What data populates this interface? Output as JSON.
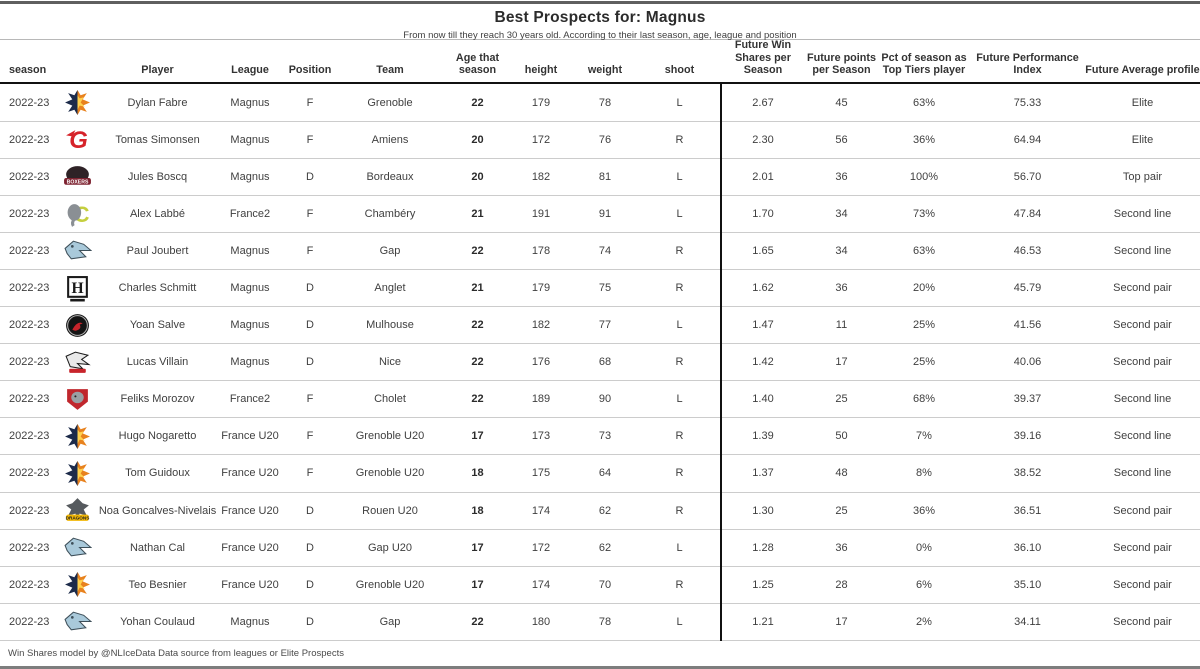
{
  "chart_data": {
    "type": "table",
    "title": "Best Prospects for: Magnus",
    "subtitle": "From now till they reach 30 years old. According to their last season, age, league and position",
    "footnote": "Win Shares model by @NLIceData Data source from leagues or Elite Prospects",
    "columns": [
      {
        "key": "season",
        "label": "season"
      },
      {
        "key": "logo",
        "label": ""
      },
      {
        "key": "player",
        "label": "Player"
      },
      {
        "key": "league",
        "label": "League"
      },
      {
        "key": "position",
        "label": "Position"
      },
      {
        "key": "team",
        "label": "Team"
      },
      {
        "key": "age",
        "label": "Age that\nseason"
      },
      {
        "key": "height",
        "label": "height"
      },
      {
        "key": "weight",
        "label": "weight"
      },
      {
        "key": "shoot",
        "label": "shoot"
      },
      {
        "key": "fws",
        "label": "Future Win\nShares per\nSeason"
      },
      {
        "key": "fpts",
        "label": "Future points\nper Season"
      },
      {
        "key": "pct",
        "label": "Pct of season as\nTop Tiers player"
      },
      {
        "key": "fpi",
        "label": "Future Performance Index"
      },
      {
        "key": "profile",
        "label": "Future Average profile"
      }
    ],
    "rows": [
      {
        "season": "2022-23",
        "logo": "grenoble",
        "player": "Dylan Fabre",
        "league": "Magnus",
        "position": "F",
        "team": "Grenoble",
        "age": "22",
        "height": "179",
        "weight": "78",
        "shoot": "L",
        "fws": "2.67",
        "fpts": "45",
        "pct": "63%",
        "fpi": "75.33",
        "profile": "Elite"
      },
      {
        "season": "2022-23",
        "logo": "amiens",
        "player": "Tomas Simonsen",
        "league": "Magnus",
        "position": "F",
        "team": "Amiens",
        "age": "20",
        "height": "172",
        "weight": "76",
        "shoot": "R",
        "fws": "2.30",
        "fpts": "56",
        "pct": "36%",
        "fpi": "64.94",
        "profile": "Elite"
      },
      {
        "season": "2022-23",
        "logo": "bordeaux",
        "player": "Jules Boscq",
        "league": "Magnus",
        "position": "D",
        "team": "Bordeaux",
        "age": "20",
        "height": "182",
        "weight": "81",
        "shoot": "L",
        "fws": "2.01",
        "fpts": "36",
        "pct": "100%",
        "fpi": "56.70",
        "profile": "Top pair"
      },
      {
        "season": "2022-23",
        "logo": "chambery",
        "player": "Alex Labbé",
        "league": "France2",
        "position": "F",
        "team": "Chambéry",
        "age": "21",
        "height": "191",
        "weight": "91",
        "shoot": "L",
        "fws": "1.70",
        "fpts": "34",
        "pct": "73%",
        "fpi": "47.84",
        "profile": "Second line"
      },
      {
        "season": "2022-23",
        "logo": "gap",
        "player": "Paul Joubert",
        "league": "Magnus",
        "position": "F",
        "team": "Gap",
        "age": "22",
        "height": "178",
        "weight": "74",
        "shoot": "R",
        "fws": "1.65",
        "fpts": "34",
        "pct": "63%",
        "fpi": "46.53",
        "profile": "Second line"
      },
      {
        "season": "2022-23",
        "logo": "anglet",
        "player": "Charles Schmitt",
        "league": "Magnus",
        "position": "D",
        "team": "Anglet",
        "age": "21",
        "height": "179",
        "weight": "75",
        "shoot": "R",
        "fws": "1.62",
        "fpts": "36",
        "pct": "20%",
        "fpi": "45.79",
        "profile": "Second pair"
      },
      {
        "season": "2022-23",
        "logo": "mulhouse",
        "player": "Yoan Salve",
        "league": "Magnus",
        "position": "D",
        "team": "Mulhouse",
        "age": "22",
        "height": "182",
        "weight": "77",
        "shoot": "L",
        "fws": "1.47",
        "fpts": "11",
        "pct": "25%",
        "fpi": "41.56",
        "profile": "Second pair"
      },
      {
        "season": "2022-23",
        "logo": "nice",
        "player": "Lucas Villain",
        "league": "Magnus",
        "position": "D",
        "team": "Nice",
        "age": "22",
        "height": "176",
        "weight": "68",
        "shoot": "R",
        "fws": "1.42",
        "fpts": "17",
        "pct": "25%",
        "fpi": "40.06",
        "profile": "Second pair"
      },
      {
        "season": "2022-23",
        "logo": "cholet",
        "player": "Feliks Morozov",
        "league": "France2",
        "position": "F",
        "team": "Cholet",
        "age": "22",
        "height": "189",
        "weight": "90",
        "shoot": "L",
        "fws": "1.40",
        "fpts": "25",
        "pct": "68%",
        "fpi": "39.37",
        "profile": "Second line"
      },
      {
        "season": "2022-23",
        "logo": "grenoble",
        "player": "Hugo Nogaretto",
        "league": "France U20",
        "position": "F",
        "team": "Grenoble U20",
        "age": "17",
        "height": "173",
        "weight": "73",
        "shoot": "R",
        "fws": "1.39",
        "fpts": "50",
        "pct": "7%",
        "fpi": "39.16",
        "profile": "Second line"
      },
      {
        "season": "2022-23",
        "logo": "grenoble",
        "player": "Tom Guidoux",
        "league": "France U20",
        "position": "F",
        "team": "Grenoble U20",
        "age": "18",
        "height": "175",
        "weight": "64",
        "shoot": "R",
        "fws": "1.37",
        "fpts": "48",
        "pct": "8%",
        "fpi": "38.52",
        "profile": "Second line"
      },
      {
        "season": "2022-23",
        "logo": "rouen",
        "player": "Noa Goncalves-Nivelais",
        "league": "France U20",
        "position": "D",
        "team": "Rouen U20",
        "age": "18",
        "height": "174",
        "weight": "62",
        "shoot": "R",
        "fws": "1.30",
        "fpts": "25",
        "pct": "36%",
        "fpi": "36.51",
        "profile": "Second pair"
      },
      {
        "season": "2022-23",
        "logo": "gap",
        "player": "Nathan Cal",
        "league": "France U20",
        "position": "D",
        "team": "Gap U20",
        "age": "17",
        "height": "172",
        "weight": "62",
        "shoot": "L",
        "fws": "1.28",
        "fpts": "36",
        "pct": "0%",
        "fpi": "36.10",
        "profile": "Second pair"
      },
      {
        "season": "2022-23",
        "logo": "grenoble",
        "player": "Teo Besnier",
        "league": "France U20",
        "position": "D",
        "team": "Grenoble U20",
        "age": "17",
        "height": "174",
        "weight": "70",
        "shoot": "R",
        "fws": "1.25",
        "fpts": "28",
        "pct": "6%",
        "fpi": "35.10",
        "profile": "Second pair"
      },
      {
        "season": "2022-23",
        "logo": "gap",
        "player": "Yohan Coulaud",
        "league": "Magnus",
        "position": "D",
        "team": "Gap",
        "age": "22",
        "height": "180",
        "weight": "78",
        "shoot": "L",
        "fws": "1.21",
        "fpts": "17",
        "pct": "2%",
        "fpi": "34.11",
        "profile": "Second pair"
      }
    ]
  },
  "logos": {
    "grenoble": {
      "name": "grenoble-logo",
      "colors": [
        "#1c2b4a",
        "#e8821e",
        "#ffd24d"
      ]
    },
    "amiens": {
      "name": "amiens-logo",
      "colors": [
        "#d6232a"
      ],
      "text": "G"
    },
    "bordeaux": {
      "name": "bordeaux-logo",
      "colors": [
        "#2e2226",
        "#7d2230",
        "#ffffff"
      ],
      "text": "BOXERS"
    },
    "chambery": {
      "name": "chambery-logo",
      "colors": [
        "#c5cf3e",
        "#8a8f94"
      ],
      "text": "C"
    },
    "gap": {
      "name": "gap-logo",
      "colors": [
        "#a9c9da",
        "#3e4f59"
      ]
    },
    "anglet": {
      "name": "anglet-logo",
      "colors": [
        "#1a1a1a",
        "#ffffff"
      ],
      "text": "H"
    },
    "mulhouse": {
      "name": "mulhouse-logo",
      "colors": [
        "#141414",
        "#c8242b"
      ]
    },
    "nice": {
      "name": "nice-logo",
      "colors": [
        "#e9e9e9",
        "#1c1c1c",
        "#c8242b"
      ]
    },
    "cholet": {
      "name": "cholet-logo",
      "colors": [
        "#c0272d",
        "#9aa0a4"
      ]
    },
    "rouen": {
      "name": "rouen-logo",
      "colors": [
        "#565a5e",
        "#f2b705"
      ],
      "text": "DRAGONS"
    }
  },
  "colors": {
    "title_text": "#2b2b2b",
    "body_text": "#3f3f3f",
    "header_rule": "#111111",
    "row_line": "#cccccc",
    "outer_border": "#5f5f5f",
    "bottom_border": "#7d7d7d",
    "column_divider": "#111111"
  }
}
